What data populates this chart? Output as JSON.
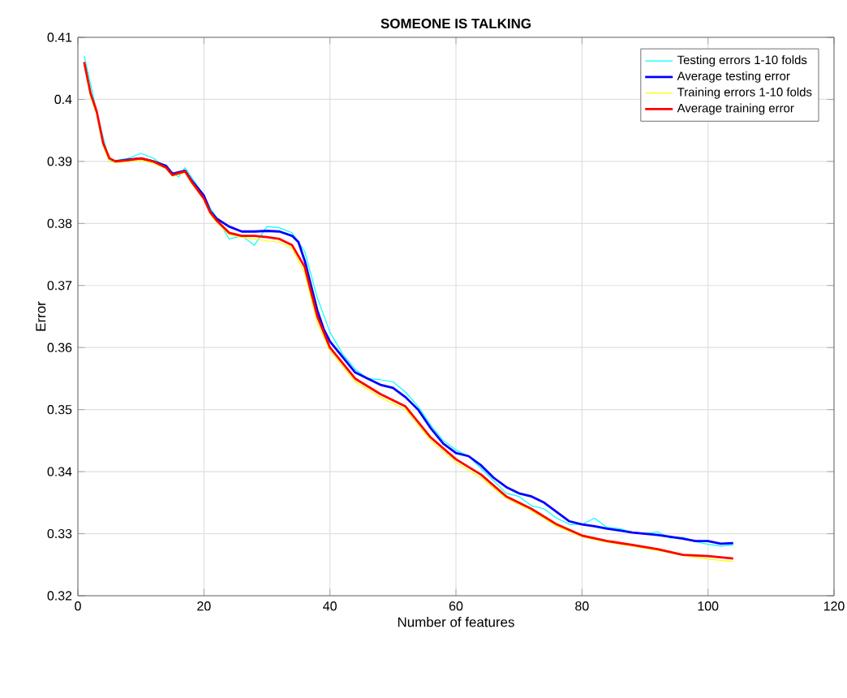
{
  "chart_data": {
    "type": "line",
    "title": "SOMEONE IS TALKING",
    "xlabel": "Number of features",
    "ylabel": "Error",
    "xlim": [
      0,
      120
    ],
    "xticks": [
      0,
      20,
      40,
      60,
      80,
      100,
      120
    ],
    "ylim": [
      0.32,
      0.41
    ],
    "yticks": [
      0.32,
      0.33,
      0.34,
      0.35,
      0.36,
      0.37,
      0.38,
      0.39,
      0.4,
      0.41
    ],
    "grid": true,
    "legend": "top right",
    "marker": "none",
    "line_style": "solid",
    "series": [
      {
        "name": "Testing errors 1-10 folds",
        "color": "#00ffff",
        "x": [
          1,
          3,
          5,
          8,
          10,
          12,
          14,
          16,
          17,
          20,
          21,
          22,
          24,
          26,
          28,
          30,
          32,
          34,
          36,
          38,
          40,
          42,
          44,
          46,
          48,
          50,
          52,
          54,
          56,
          58,
          60,
          62,
          64,
          66,
          68,
          70,
          72,
          74,
          76,
          78,
          80,
          82,
          84,
          86,
          88,
          90,
          92,
          94,
          96,
          98,
          100,
          102,
          104
        ],
        "values": [
          0.407,
          0.398,
          0.39,
          0.3905,
          0.3913,
          0.3905,
          0.389,
          0.3875,
          0.389,
          0.3845,
          0.3825,
          0.381,
          0.3775,
          0.378,
          0.3765,
          0.3795,
          0.3793,
          0.3785,
          0.3755,
          0.368,
          0.3625,
          0.359,
          0.3565,
          0.355,
          0.3548,
          0.3545,
          0.3528,
          0.3505,
          0.3475,
          0.345,
          0.3435,
          0.3425,
          0.3405,
          0.3385,
          0.3365,
          0.336,
          0.3345,
          0.334,
          0.3325,
          0.3315,
          0.3315,
          0.3325,
          0.331,
          0.3308,
          0.3302,
          0.33,
          0.3303,
          0.3293,
          0.3294,
          0.3287,
          0.3283,
          0.328,
          0.3282
        ]
      },
      {
        "name": "Average testing error",
        "color": "#0000ff",
        "x": [
          6,
          8,
          10,
          12,
          14,
          15,
          17,
          18,
          20,
          21,
          22,
          24,
          26,
          28,
          30,
          32,
          34,
          35,
          36,
          37,
          38,
          39,
          40,
          42,
          44,
          46,
          48,
          50,
          52,
          54,
          56,
          58,
          60,
          62,
          64,
          66,
          68,
          70,
          72,
          74,
          76,
          78,
          80,
          82,
          84,
          86,
          88,
          90,
          92,
          94,
          96,
          98,
          100,
          102,
          104
        ],
        "values": [
          0.39,
          0.3903,
          0.3905,
          0.39,
          0.3893,
          0.388,
          0.3885,
          0.387,
          0.3845,
          0.382,
          0.3808,
          0.3795,
          0.3787,
          0.3787,
          0.3788,
          0.3787,
          0.378,
          0.377,
          0.374,
          0.37,
          0.366,
          0.363,
          0.361,
          0.3585,
          0.356,
          0.355,
          0.354,
          0.3535,
          0.352,
          0.35,
          0.347,
          0.3445,
          0.343,
          0.3425,
          0.341,
          0.339,
          0.3375,
          0.3365,
          0.336,
          0.335,
          0.3335,
          0.332,
          0.3315,
          0.3312,
          0.3308,
          0.3305,
          0.3302,
          0.33,
          0.3298,
          0.3295,
          0.3292,
          0.3288,
          0.3288,
          0.3284,
          0.3285
        ]
      },
      {
        "name": "Training errors 1-10 folds",
        "color": "#ffff00",
        "x": [
          1,
          2,
          3,
          4,
          5,
          6,
          8,
          10,
          12,
          14,
          15,
          17,
          18,
          20,
          21,
          22,
          24,
          26,
          28,
          30,
          32,
          34,
          36,
          38,
          40,
          44,
          48,
          52,
          56,
          60,
          64,
          68,
          72,
          76,
          80,
          84,
          88,
          92,
          96,
          100,
          104
        ],
        "values": [
          0.4055,
          0.4005,
          0.3975,
          0.3925,
          0.39,
          0.3898,
          0.39,
          0.3902,
          0.3897,
          0.3888,
          0.3876,
          0.3882,
          0.3865,
          0.3838,
          0.3815,
          0.3802,
          0.3782,
          0.3778,
          0.3775,
          0.3772,
          0.377,
          0.376,
          0.372,
          0.364,
          0.3595,
          0.3545,
          0.352,
          0.35,
          0.345,
          0.3415,
          0.339,
          0.3357,
          0.3337,
          0.3312,
          0.3295,
          0.3286,
          0.328,
          0.3273,
          0.3265,
          0.3259,
          0.3255
        ]
      },
      {
        "name": "Average training error",
        "color": "#ff0000",
        "x": [
          1,
          2,
          3,
          4,
          5,
          6,
          8,
          10,
          12,
          14,
          15,
          17,
          18,
          20,
          21,
          22,
          24,
          26,
          28,
          30,
          32,
          34,
          36,
          38,
          40,
          44,
          48,
          52,
          56,
          60,
          64,
          68,
          72,
          76,
          80,
          84,
          88,
          92,
          96,
          100,
          104
        ],
        "values": [
          0.406,
          0.401,
          0.398,
          0.393,
          0.3905,
          0.39,
          0.3902,
          0.3905,
          0.39,
          0.389,
          0.3878,
          0.3884,
          0.3868,
          0.384,
          0.3818,
          0.3805,
          0.3785,
          0.378,
          0.378,
          0.3778,
          0.3775,
          0.3765,
          0.373,
          0.365,
          0.36,
          0.355,
          0.3525,
          0.3505,
          0.3455,
          0.342,
          0.3395,
          0.336,
          0.334,
          0.3315,
          0.3297,
          0.3288,
          0.3282,
          0.3275,
          0.3266,
          0.3264,
          0.326
        ]
      }
    ]
  }
}
